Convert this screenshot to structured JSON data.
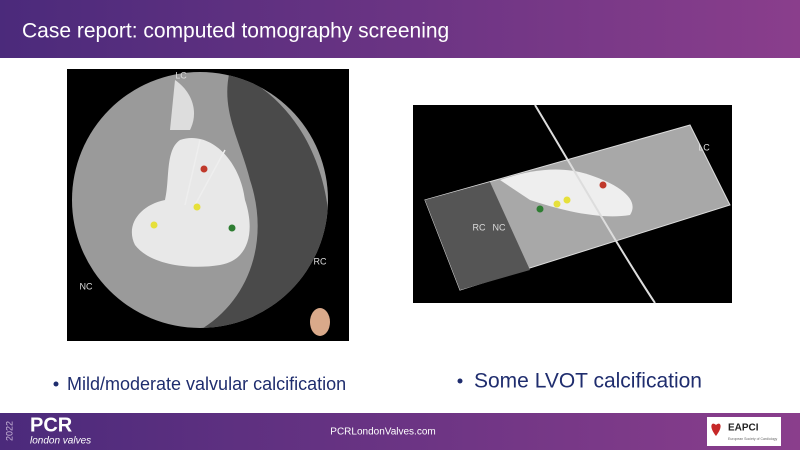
{
  "header": {
    "title": "Case report: computed tomography screening"
  },
  "images": [
    {
      "labels": [
        "LC",
        "RC",
        "NC"
      ]
    },
    {
      "labels": [
        "LC",
        "RC",
        "NC"
      ]
    }
  ],
  "bullets": [
    "Mild/moderate valvular calcification",
    "Some LVOT calcification"
  ],
  "footer": {
    "year": "2022",
    "brand": "PCR",
    "event": "london valves",
    "url": "PCRLondonValves.com",
    "logo": "EAPCI",
    "logo_sub": "European Society of Cardiology"
  }
}
